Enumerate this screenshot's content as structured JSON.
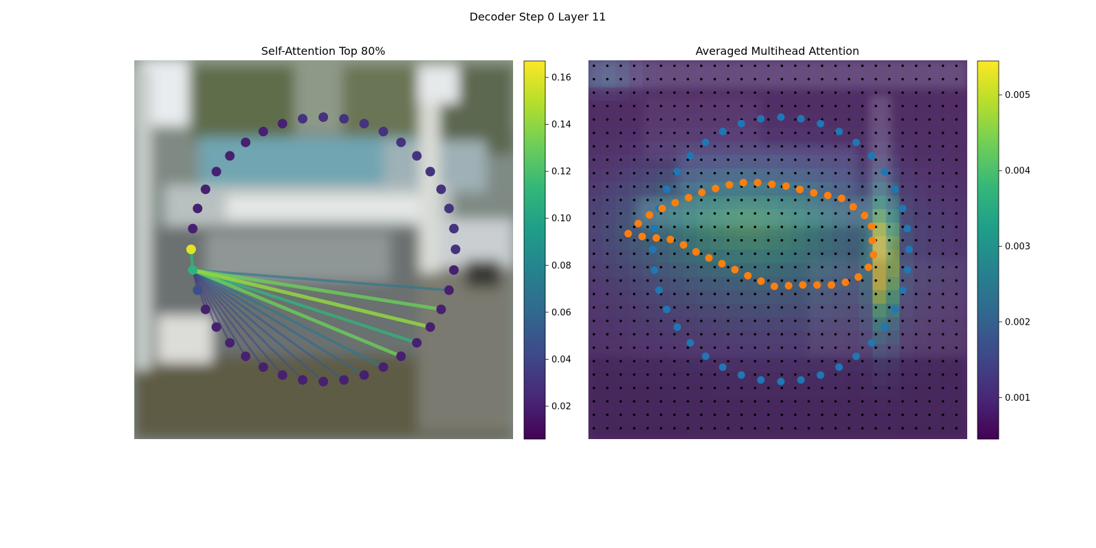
{
  "figure": {
    "suptitle": "Decoder Step 0 Layer 11"
  },
  "colors": {
    "viridis": [
      "#440154",
      "#482878",
      "#3e4989",
      "#31688e",
      "#26828e",
      "#1f9e89",
      "#35b779",
      "#6ece58",
      "#b5de2b",
      "#fde725"
    ],
    "initial_contour": "#1f77b4",
    "predicted_contour": "#ff7f0e",
    "grid_points": "#000000"
  },
  "chart_data": [
    {
      "type": "scatter",
      "title": "Self-Attention Top 80%",
      "background": "street photo with parked cars (contour around a car)",
      "colorbar": {
        "range": [
          0.006,
          0.167
        ],
        "ticks": [
          0.02,
          0.04,
          0.06,
          0.08,
          0.1,
          0.12,
          0.14,
          0.16
        ],
        "tick_labels": [
          "0.02",
          "0.04",
          "0.06",
          "0.08",
          "0.10",
          "0.12",
          "0.14",
          "0.16"
        ]
      },
      "contour_points": 40,
      "contour_weights": [
        0.16,
        0.11,
        0.045,
        0.02,
        0.02,
        0.02,
        0.02,
        0.02,
        0.02,
        0.02,
        0.02,
        0.02,
        0.02,
        0.02,
        0.02,
        0.02,
        0.02,
        0.02,
        0.02,
        0.02,
        0.03,
        0.03,
        0.03,
        0.03,
        0.03,
        0.03,
        0.03,
        0.03,
        0.03,
        0.03,
        0.03,
        0.03,
        0.02,
        0.02,
        0.02,
        0.02,
        0.02,
        0.02,
        0.02,
        0.02
      ],
      "query_index": 1,
      "attention_edges": [
        {
          "to": 0,
          "weight": 0.11
        },
        {
          "to": 18,
          "weight": 0.07
        },
        {
          "to": 17,
          "weight": 0.13
        },
        {
          "to": 16,
          "weight": 0.14
        },
        {
          "to": 15,
          "weight": 0.11
        },
        {
          "to": 14,
          "weight": 0.13
        },
        {
          "to": 13,
          "weight": 0.07
        },
        {
          "to": 12,
          "weight": 0.06
        },
        {
          "to": 11,
          "weight": 0.05
        },
        {
          "to": 10,
          "weight": 0.05
        },
        {
          "to": 9,
          "weight": 0.045
        },
        {
          "to": 8,
          "weight": 0.04
        },
        {
          "to": 7,
          "weight": 0.04
        },
        {
          "to": 6,
          "weight": 0.04
        },
        {
          "to": 5,
          "weight": 0.035
        },
        {
          "to": 4,
          "weight": 0.035
        },
        {
          "to": 3,
          "weight": 0.03
        },
        {
          "to": 2,
          "weight": 0.03
        }
      ]
    },
    {
      "type": "heatmap",
      "title": "Averaged Multihead Attention",
      "background": "same street photo overlaid with an attention heatmap",
      "colorbar": {
        "range": [
          0.00045,
          0.00545
        ],
        "ticks": [
          0.001,
          0.002,
          0.003,
          0.004,
          0.005
        ],
        "tick_labels": [
          "0.001",
          "0.002",
          "0.003",
          "0.004",
          "0.005"
        ]
      },
      "sampling_grid": {
        "rows": 28,
        "cols": 28
      },
      "heatmap": {
        "rows": 28,
        "cols": 28,
        "base_value": 0.0007,
        "peak_value": 0.0054,
        "peak_location": "right edge of the car"
      },
      "series": [
        {
          "role": "initial contour",
          "color": "#1f77b4",
          "points": 40
        },
        {
          "role": "predicted contour",
          "color": "#ff7f0e",
          "points": 40
        }
      ]
    }
  ]
}
